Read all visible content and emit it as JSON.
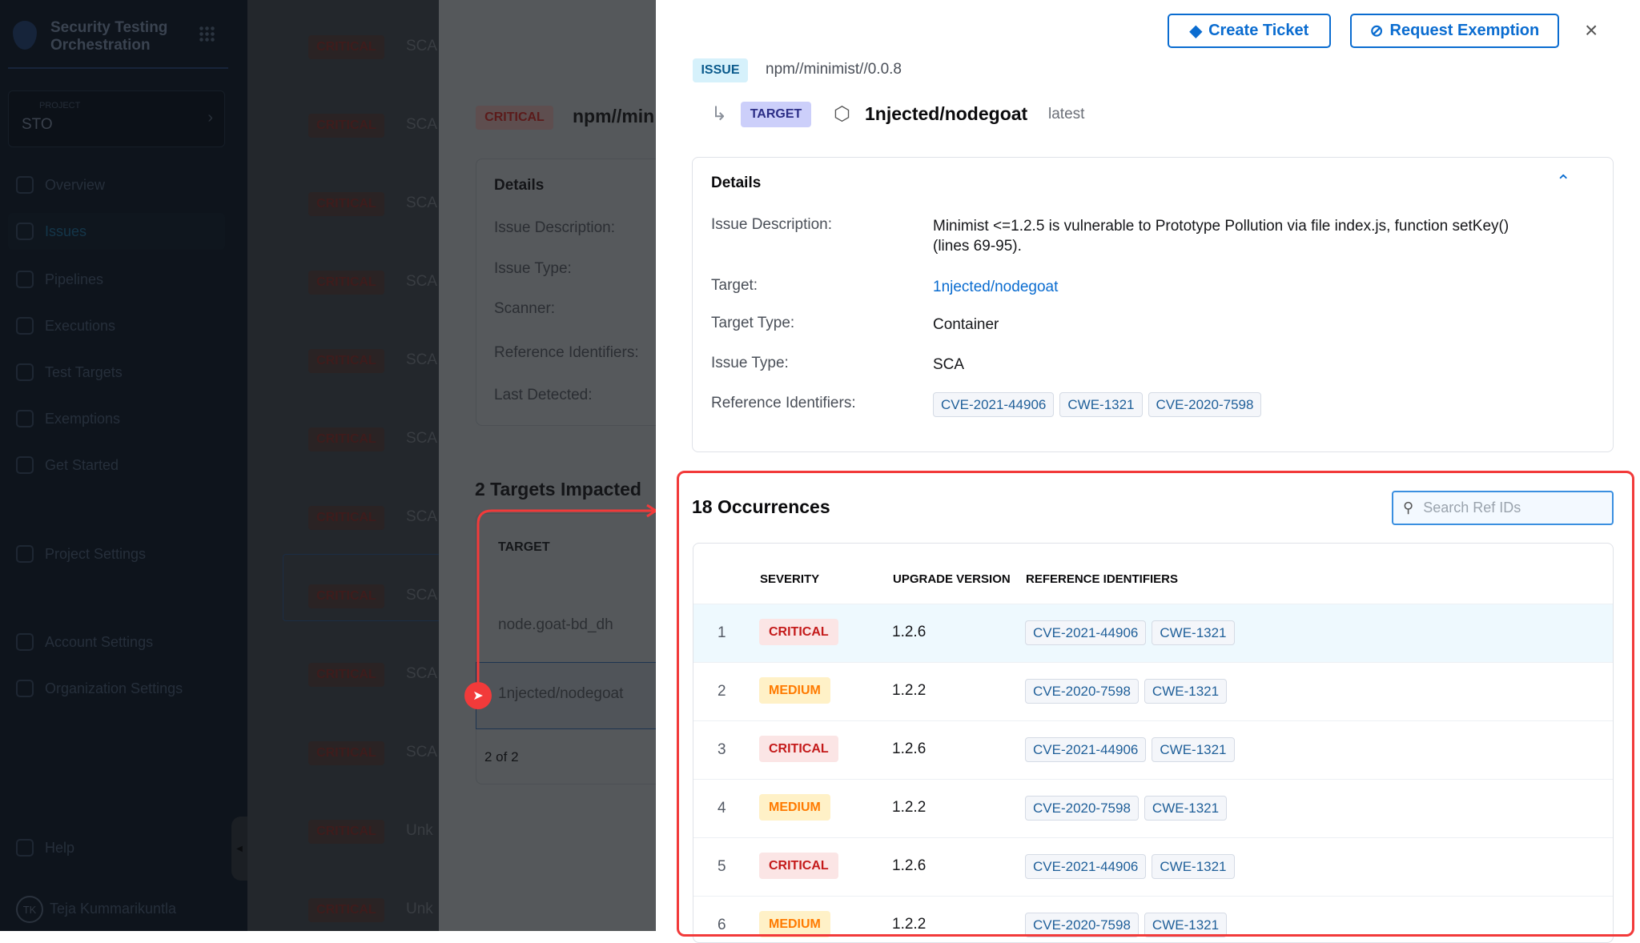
{
  "sidebar": {
    "app_title_line1": "Security Testing",
    "app_title_line2": "Orchestration",
    "project_label": "PROJECT",
    "project_value": "STO",
    "nav": [
      {
        "label": "Overview",
        "icon": "home-icon"
      },
      {
        "label": "Issues",
        "icon": "issues-icon",
        "active": true
      },
      {
        "label": "Pipelines",
        "icon": "pipelines-icon"
      },
      {
        "label": "Executions",
        "icon": "executions-icon"
      },
      {
        "label": "Test Targets",
        "icon": "target-icon"
      },
      {
        "label": "Exemptions",
        "icon": "eye-off-icon"
      },
      {
        "label": "Get Started",
        "icon": "get-started-icon"
      }
    ],
    "project_settings": "Project Settings",
    "account_settings": "Account Settings",
    "organization_settings": "Organization Settings",
    "help": "Help",
    "user_initials": "TK",
    "user_name": "Teja Kummarikuntla"
  },
  "issue_list": {
    "rows": [
      {
        "severity": "CRITICAL",
        "type": "SCA"
      },
      {
        "severity": "CRITICAL",
        "type": "SCA"
      },
      {
        "severity": "CRITICAL",
        "type": "SCA"
      },
      {
        "severity": "CRITICAL",
        "type": "SCA"
      },
      {
        "severity": "CRITICAL",
        "type": "SCA"
      },
      {
        "severity": "CRITICAL",
        "type": "SCA"
      },
      {
        "severity": "CRITICAL",
        "type": "SCA"
      },
      {
        "severity": "CRITICAL",
        "type": "SCA"
      },
      {
        "severity": "CRITICAL",
        "type": "SCA"
      },
      {
        "severity": "CRITICAL",
        "type": "SCA"
      },
      {
        "severity": "CRITICAL",
        "type": "Unk"
      },
      {
        "severity": "CRITICAL",
        "type": "Unk"
      }
    ]
  },
  "issue_panel": {
    "severity": "CRITICAL",
    "name": "npm//min",
    "details_title": "Details",
    "labels": [
      "Issue Description:",
      "Issue Type:",
      "Scanner:",
      "Reference Identifiers:",
      "Last Detected:"
    ],
    "targets_title": "2 Targets Impacted",
    "targets_header": "TARGET",
    "targets": [
      "node.goat-bd_dh",
      "1njected/nodegoat"
    ],
    "pagination": "2 of 2"
  },
  "drawer": {
    "create_ticket": "Create Ticket",
    "request_exemption": "Request Exemption",
    "close": "×",
    "issue_badge": "ISSUE",
    "issue_name": "npm//minimist//0.0.8",
    "target_badge": "TARGET",
    "target_name": "1njected/nodegoat",
    "target_version": "latest",
    "details": {
      "title": "Details",
      "description_label": "Issue Description:",
      "description": "Minimist <=1.2.5 is vulnerable to Prototype Pollution via file index.js, function setKey() (lines 69-95).",
      "target_label": "Target:",
      "target": "1njected/nodegoat",
      "target_type_label": "Target Type:",
      "target_type": "Container",
      "issue_type_label": "Issue Type:",
      "issue_type": "SCA",
      "ref_label": "Reference Identifiers:",
      "refs": [
        "CVE-2021-44906",
        "CWE-1321",
        "CVE-2020-7598"
      ]
    },
    "occurrences": {
      "title": "18 Occurrences",
      "search_placeholder": "Search Ref IDs",
      "headers": {
        "severity": "SEVERITY",
        "upgrade": "UPGRADE VERSION",
        "refs": "REFERENCE IDENTIFIERS"
      },
      "rows": [
        {
          "num": "1",
          "severity": "CRITICAL",
          "upgrade": "1.2.6",
          "refs": [
            "CVE-2021-44906",
            "CWE-1321"
          ]
        },
        {
          "num": "2",
          "severity": "MEDIUM",
          "upgrade": "1.2.2",
          "refs": [
            "CVE-2020-7598",
            "CWE-1321"
          ]
        },
        {
          "num": "3",
          "severity": "CRITICAL",
          "upgrade": "1.2.6",
          "refs": [
            "CVE-2021-44906",
            "CWE-1321"
          ]
        },
        {
          "num": "4",
          "severity": "MEDIUM",
          "upgrade": "1.2.2",
          "refs": [
            "CVE-2020-7598",
            "CWE-1321"
          ]
        },
        {
          "num": "5",
          "severity": "CRITICAL",
          "upgrade": "1.2.6",
          "refs": [
            "CVE-2021-44906",
            "CWE-1321"
          ]
        },
        {
          "num": "6",
          "severity": "MEDIUM",
          "upgrade": "1.2.2",
          "refs": [
            "CVE-2020-7598",
            "CWE-1321"
          ]
        }
      ]
    }
  },
  "colors": {
    "accent": "#0a6cd0",
    "annotation": "#f23a3a",
    "critical": "#c41a1a",
    "medium": "#ff7a00"
  }
}
